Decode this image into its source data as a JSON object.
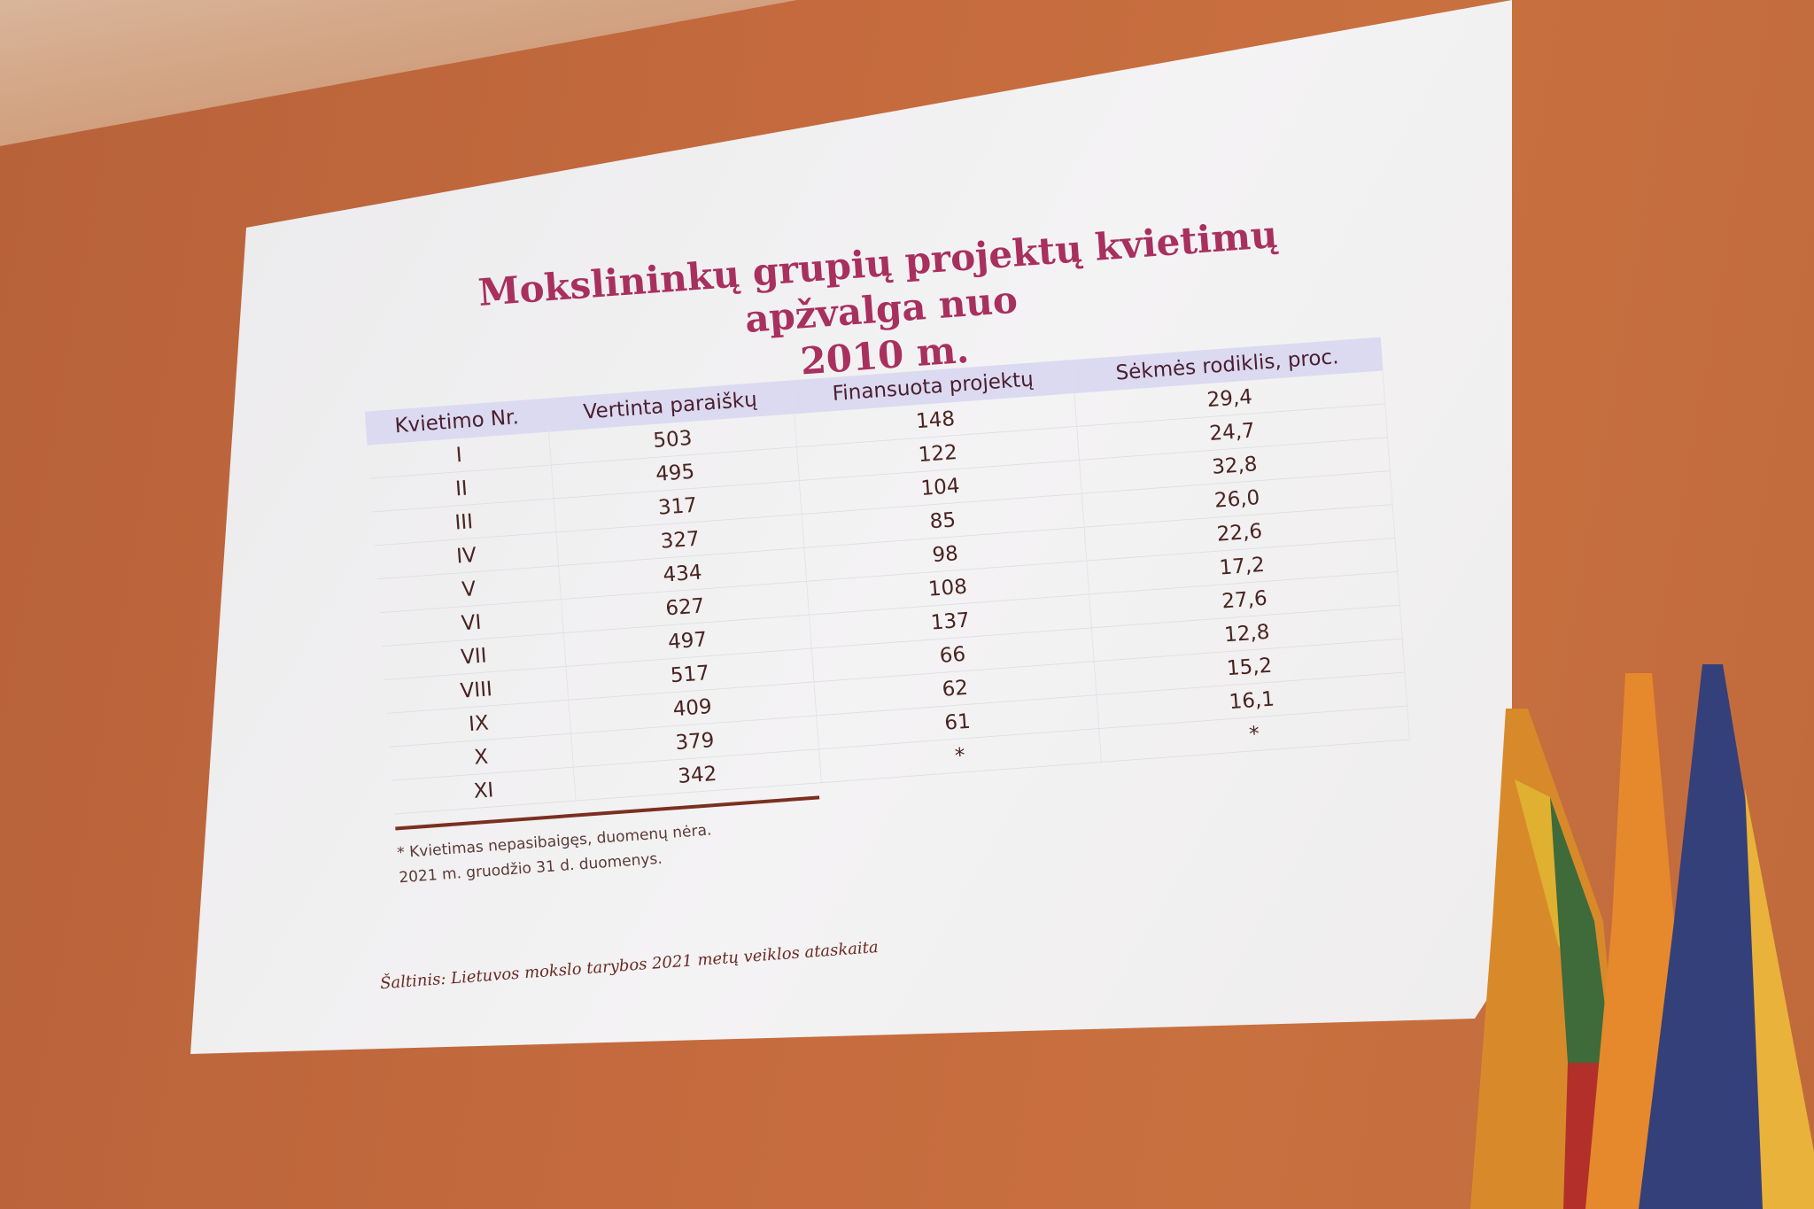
{
  "slide": {
    "title_line1": "Mokslininkų grupių projektų kvietimų apžvalga nuo",
    "title_line2": "2010 m.",
    "table": {
      "headers": [
        "Kvietimo Nr.",
        "Vertinta paraiškų",
        "Finansuota projektų",
        "Sėkmės rodiklis, proc."
      ],
      "rows": [
        [
          "I",
          "503",
          "148",
          "29,4"
        ],
        [
          "II",
          "495",
          "122",
          "24,7"
        ],
        [
          "III",
          "317",
          "104",
          "32,8"
        ],
        [
          "IV",
          "327",
          "85",
          "26,0"
        ],
        [
          "V",
          "434",
          "98",
          "22,6"
        ],
        [
          "VI",
          "627",
          "108",
          "17,2"
        ],
        [
          "VII",
          "497",
          "137",
          "27,6"
        ],
        [
          "VIII",
          "517",
          "66",
          "12,8"
        ],
        [
          "IX",
          "409",
          "62",
          "15,2"
        ],
        [
          "X",
          "379",
          "61",
          "16,1"
        ],
        [
          "XI",
          "342",
          "*",
          "*"
        ]
      ]
    },
    "footnote": "* Kvietimas nepasibaigęs, duomenų nėra.",
    "date_note": "2021 m. gruodžio 31 d. duomenys.",
    "source": "Šaltinis: Lietuvos mokslo tarybos 2021 metų veiklos ataskaita"
  },
  "colors": {
    "title": "#a8305f",
    "header_band": "#dcdaf0",
    "wall": "#c46a3e",
    "flag_lithuania": [
      "#f2b52a",
      "#2f6b3a",
      "#b0282a"
    ],
    "flag_ukraine": [
      "#2a4a8a",
      "#f0c030"
    ]
  }
}
